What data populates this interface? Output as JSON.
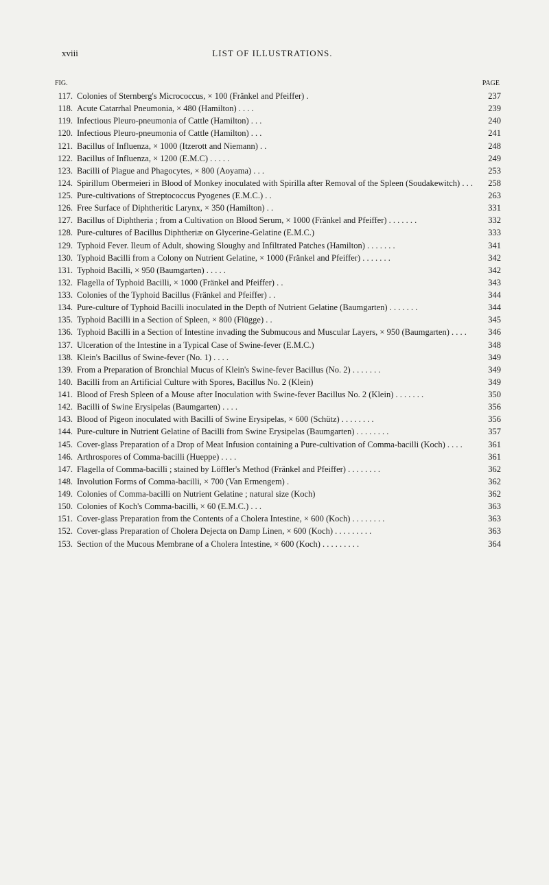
{
  "header": {
    "roman": "xviii",
    "title": "LIST OF ILLUSTRATIONS."
  },
  "labels": {
    "fig": "FIG.",
    "page": "PAGE"
  },
  "entries": [
    {
      "num": "117.",
      "text": "Colonies of Sternberg's Micrococcus, × 100 (Fränkel and Pfeiffer) .",
      "page": "237"
    },
    {
      "num": "118.",
      "text": "Acute Catarrhal Pneumonia, × 480 (Hamilton) . . . .",
      "page": "239"
    },
    {
      "num": "119.",
      "text": "Infectious Pleuro-pneumonia of Cattle (Hamilton) . . .",
      "page": "240"
    },
    {
      "num": "120.",
      "text": "Infectious Pleuro-pneumonia of Cattle (Hamilton) . . .",
      "page": "241"
    },
    {
      "num": "121.",
      "text": "Bacillus of Influenza, × 1000 (Itzerott and Niemann) . .",
      "page": "248"
    },
    {
      "num": "122.",
      "text": "Bacillus of Influenza, × 1200 (E.M.C) . . . . .",
      "page": "249"
    },
    {
      "num": "123.",
      "text": "Bacilli of Plague and Phagocytes, × 800 (Aoyama) . . .",
      "page": "253"
    },
    {
      "num": "124.",
      "text": "Spirillum Obermeieri in Blood of Monkey inoculated with Spirilla after Removal of the Spleen (Soudakewitch) . . .",
      "page": "258"
    },
    {
      "num": "125.",
      "text": "Pure-cultivations of Streptococcus Pyogenes (E.M.C.) . .",
      "page": "263"
    },
    {
      "num": "126.",
      "text": "Free Surface of Diphtheritic Larynx, × 350 (Hamilton) . .",
      "page": "331"
    },
    {
      "num": "127.",
      "text": "Bacillus of Diphtheria ; from a Cultivation on Blood Serum, × 1000 (Fränkel and Pfeiffer) . . . . . . .",
      "page": "332"
    },
    {
      "num": "128.",
      "text": "Pure-cultures of Bacillus Diphtheriæ on Glycerine-Gelatine (E.M.C.)",
      "page": "333"
    },
    {
      "num": "129.",
      "text": "Typhoid Fever. Ileum of Adult, showing Sloughy and Infiltrated Patches (Hamilton) . . . . . . .",
      "page": "341"
    },
    {
      "num": "130.",
      "text": "Typhoid Bacilli from a Colony on Nutrient Gelatine, × 1000 (Fränkel and Pfeiffer) . . . . . . .",
      "page": "342"
    },
    {
      "num": "131.",
      "text": "Typhoid Bacilli, × 950 (Baumgarten) . . . . .",
      "page": "342"
    },
    {
      "num": "132.",
      "text": "Flagella of Typhoid Bacilli, × 1000 (Fränkel and Pfeiffer) . .",
      "page": "343"
    },
    {
      "num": "133.",
      "text": "Colonies of the Typhoid Bacillus (Fränkel and Pfeiffer) . .",
      "page": "344"
    },
    {
      "num": "134.",
      "text": "Pure-culture of Typhoid Bacilli inoculated in the Depth of Nutrient Gelatine (Baumgarten) . . . . . . .",
      "page": "344"
    },
    {
      "num": "135.",
      "text": "Typhoid Bacilli in a Section of Spleen, × 800 (Flügge) . .",
      "page": "345"
    },
    {
      "num": "136.",
      "text": "Typhoid Bacilli in a Section of Intestine invading the Submucous and Muscular Layers, × 950 (Baumgarten) . . . .",
      "page": "346"
    },
    {
      "num": "137.",
      "text": "Ulceration of the Intestine in a Typical Case of Swine-fever (E.M.C.)",
      "page": "348"
    },
    {
      "num": "138.",
      "text": "Klein's Bacillus of Swine-fever (No. 1) . . . .",
      "page": "349"
    },
    {
      "num": "139.",
      "text": "From a Preparation of Bronchial Mucus of Klein's Swine-fever Bacillus (No. 2) . . . . . . .",
      "page": "349"
    },
    {
      "num": "140.",
      "text": "Bacilli from an Artificial Culture with Spores, Bacillus No. 2 (Klein)",
      "page": "349"
    },
    {
      "num": "141.",
      "text": "Blood of Fresh Spleen of a Mouse after Inoculation with Swine-fever Bacillus No. 2 (Klein) . . . . . . .",
      "page": "350"
    },
    {
      "num": "142.",
      "text": "Bacilli of Swine Erysipelas (Baumgarten) . . . .",
      "page": "356"
    },
    {
      "num": "143.",
      "text": "Blood of Pigeon inoculated with Bacilli of Swine Erysipelas, × 600 (Schütz) . . . . . . . .",
      "page": "356"
    },
    {
      "num": "144.",
      "text": "Pure-culture in Nutrient Gelatine of Bacilli from Swine Erysipelas (Baumgarten) . . . . . . . .",
      "page": "357"
    },
    {
      "num": "145.",
      "text": "Cover-glass Preparation of a Drop of Meat Infusion containing a Pure-cultivation of Comma-bacilli (Koch) . . . .",
      "page": "361"
    },
    {
      "num": "146.",
      "text": "Arthrospores of Comma-bacilli (Hueppe) . . . .",
      "page": "361"
    },
    {
      "num": "147.",
      "text": "Flagella of Comma-bacilli ; stained by Löffler's Method (Fränkel and Pfeiffer) . . . . . . . .",
      "page": "362"
    },
    {
      "num": "148.",
      "text": "Involution Forms of Comma-bacilli, × 700 (Van Ermengem) .",
      "page": "362"
    },
    {
      "num": "149.",
      "text": "Colonies of Comma-bacilli on Nutrient Gelatine ; natural size (Koch)",
      "page": "362"
    },
    {
      "num": "150.",
      "text": "Colonies of Koch's Comma-bacilli, × 60 (E.M.C.) . . .",
      "page": "363"
    },
    {
      "num": "151.",
      "text": "Cover-glass Preparation from the Contents of a Cholera Intestine, × 600 (Koch) . . . . . . . .",
      "page": "363"
    },
    {
      "num": "152.",
      "text": "Cover-glass Preparation of Cholera Dejecta on Damp Linen, × 600 (Koch) . . . . . . . . .",
      "page": "363"
    },
    {
      "num": "153.",
      "text": "Section of the Mucous Membrane of a Cholera Intestine, × 600 (Koch) . . . . . . . . .",
      "page": "364"
    }
  ]
}
